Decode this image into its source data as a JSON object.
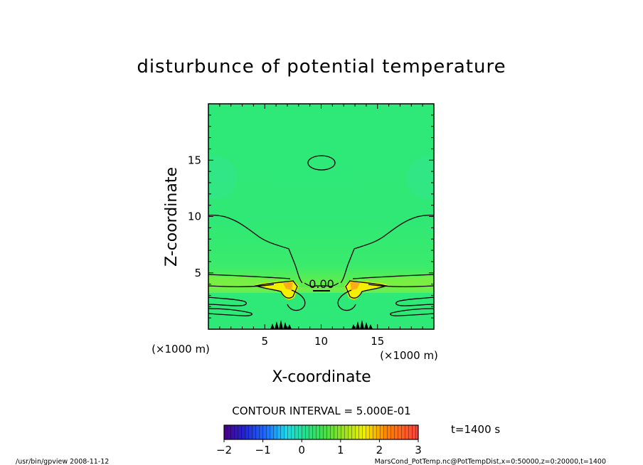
{
  "chart_data": {
    "type": "heatmap",
    "title": "disturbunce of potential temperature",
    "xlabel": "X-coordinate",
    "ylabel": "Z-coordinate",
    "x_unit": "(×1000 m)",
    "y_unit": "(×1000 m)",
    "xlim": [
      0,
      20
    ],
    "ylim": [
      0,
      20
    ],
    "x_ticks": [
      5,
      10,
      15
    ],
    "y_ticks": [
      5,
      10,
      15
    ],
    "contour_label": "0.00",
    "contour_interval_text": "CONTOUR INTERVAL = 5.000E-01",
    "colorbar": {
      "min": -2,
      "max": 3,
      "ticks": [
        -2,
        -1,
        0,
        1,
        2,
        3
      ]
    },
    "time_label": "t=1400 s"
  },
  "footer": {
    "left": "/usr/bin/gpview   2008-11-12",
    "right": "MarsCond_PotTemp.nc@PotTempDist,x=0:50000,z=0:20000,t=1400"
  }
}
